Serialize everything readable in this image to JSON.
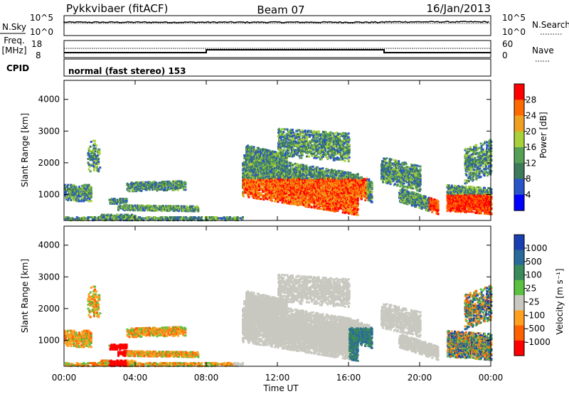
{
  "header": {
    "site": "Pykkvibaer (fitACF)",
    "beam": "Beam 07",
    "date": "16/Jan/2013"
  },
  "noise_panel": {
    "left_label": "N.Sky",
    "right_label": "N.Search",
    "ticks": [
      "10^5",
      "10^0"
    ]
  },
  "freq_panel": {
    "label_line1": "Freq.",
    "label_line2": "[MHz]",
    "left_ticks": [
      "18",
      "8"
    ],
    "right_ticks": [
      "60",
      "0"
    ],
    "right_label": "Nave"
  },
  "cpid": {
    "label": "CPID",
    "text": "normal (fast stereo) 153"
  },
  "chart_data": [
    {
      "type": "heatmap",
      "title": "Power",
      "ylabel": "Slant Range [km]",
      "xlabel": "",
      "ylim": [
        180,
        4600
      ],
      "yticks": [
        "1000",
        "2000",
        "3000",
        "4000"
      ],
      "colorbar": {
        "label": "Power [dB]",
        "ticks": [
          "28",
          "24",
          "20",
          "16",
          "12",
          "8",
          "4"
        ],
        "range": [
          0,
          30
        ],
        "colors": [
          "#0000ff",
          "#2a55c8",
          "#3c7a5a",
          "#55a055",
          "#a8d03a",
          "#f0a020",
          "#ff6a00",
          "#ff0000"
        ]
      }
    },
    {
      "type": "heatmap",
      "title": "Velocity",
      "ylabel": "Slant Range [km]",
      "xlabel": "Time UT",
      "ylim": [
        180,
        4600
      ],
      "yticks": [
        "1000",
        "2000",
        "3000",
        "4000"
      ],
      "xticks": [
        "00:00",
        "04:00",
        "08:00",
        "12:00",
        "16:00",
        "20:00",
        "00:00"
      ],
      "xrange_hours": [
        0,
        24
      ],
      "colorbar": {
        "label": "Velocity [m s⁻¹]",
        "ticks": [
          "1000",
          "500",
          "100",
          "25",
          "-25",
          "-100",
          "-500",
          "-1000"
        ],
        "colors": [
          "#1a3fb0",
          "#2a6a9a",
          "#3a8a5a",
          "#5cc040",
          "#c8c8c0",
          "#ffa020",
          "#ff6000",
          "#ff0000"
        ]
      }
    }
  ]
}
